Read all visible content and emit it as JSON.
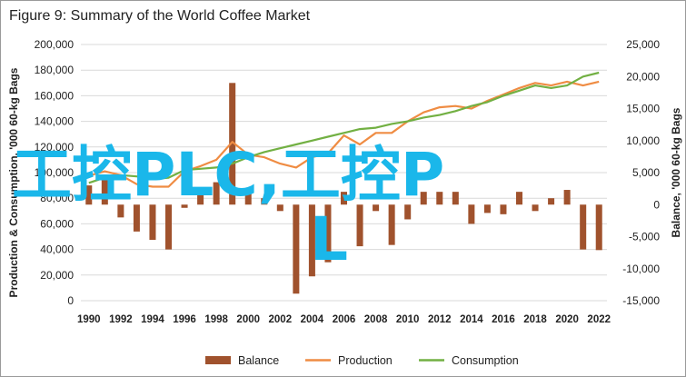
{
  "chart_data": {
    "type": "bar+line",
    "title": "Figure 9: Summary of the World Coffee Market",
    "ylabel_left": "Production & Consumption, '000 60-kg Bags",
    "ylabel_right": "Balance, '000 60-kg Bags",
    "ylim_left": [
      0,
      200000
    ],
    "ylim_right": [
      -15000,
      25000
    ],
    "yticks_left": [
      0,
      20000,
      40000,
      60000,
      80000,
      100000,
      120000,
      140000,
      160000,
      180000,
      200000
    ],
    "yticks_left_labels": [
      "0",
      "20,000",
      "40,000",
      "60,000",
      "80,000",
      "100,000",
      "120,000",
      "140,000",
      "160,000",
      "180,000",
      "200,000"
    ],
    "yticks_right": [
      -15000,
      -10000,
      -5000,
      0,
      5000,
      10000,
      15000,
      20000,
      25000
    ],
    "yticks_right_labels": [
      "-15,000",
      "-10,000",
      "-5,000",
      "0",
      "5,000",
      "10,000",
      "15,000",
      "20,000",
      "25,000"
    ],
    "x": [
      1990,
      1991,
      1992,
      1993,
      1994,
      1995,
      1996,
      1997,
      1998,
      1999,
      2000,
      2001,
      2002,
      2003,
      2004,
      2005,
      2006,
      2007,
      2008,
      2009,
      2010,
      2011,
      2012,
      2013,
      2014,
      2015,
      2016,
      2017,
      2018,
      2019,
      2020,
      2021,
      2022
    ],
    "xtick_labels": [
      "1990",
      "1992",
      "1994",
      "1996",
      "1998",
      "2000",
      "2002",
      "2004",
      "2006",
      "2008",
      "2010",
      "2012",
      "2014",
      "2016",
      "2018",
      "2020",
      "2022"
    ],
    "series": [
      {
        "name": "Balance",
        "type": "bar",
        "axis": "right",
        "color": "#a0522d",
        "values": [
          3000,
          4000,
          -2000,
          -4200,
          -5500,
          -7000,
          -500,
          2000,
          3500,
          19000,
          2000,
          1000,
          -1000,
          -13900,
          -11200,
          -9000,
          2000,
          -6500,
          -1000,
          -6300,
          -2300,
          2000,
          2000,
          2000,
          -3000,
          -1300,
          -1500,
          2000,
          -1000,
          1000,
          2300,
          -7000,
          -7100
        ]
      },
      {
        "name": "Production",
        "type": "line",
        "axis": "left",
        "color": "#ef8c43",
        "values": [
          97500,
          101000,
          98000,
          91000,
          89000,
          89000,
          101000,
          105000,
          110000,
          124000,
          114000,
          112000,
          107000,
          104000,
          112000,
          115000,
          129000,
          122000,
          131000,
          131000,
          140000,
          147000,
          151000,
          152000,
          150000,
          156000,
          161000,
          166000,
          170000,
          168000,
          171000,
          168000,
          171000
        ]
      },
      {
        "name": "Consumption",
        "type": "line",
        "axis": "left",
        "color": "#72b043",
        "values": [
          92000,
          96000,
          98000,
          97000,
          95000,
          96000,
          102000,
          103000,
          104000,
          107000,
          112000,
          116000,
          119000,
          122000,
          125000,
          128000,
          131000,
          134000,
          135000,
          138000,
          140000,
          143000,
          145000,
          148000,
          152000,
          155000,
          160000,
          164000,
          168000,
          166000,
          168000,
          175000,
          178000
        ]
      }
    ],
    "legend": {
      "placement": "bottom",
      "items": [
        "Balance",
        "Production",
        "Consumption"
      ]
    },
    "grid": {
      "horizontal": true,
      "vertical": false
    }
  },
  "watermark": {
    "line1": "工控PLC,工控P",
    "line2": "L"
  }
}
